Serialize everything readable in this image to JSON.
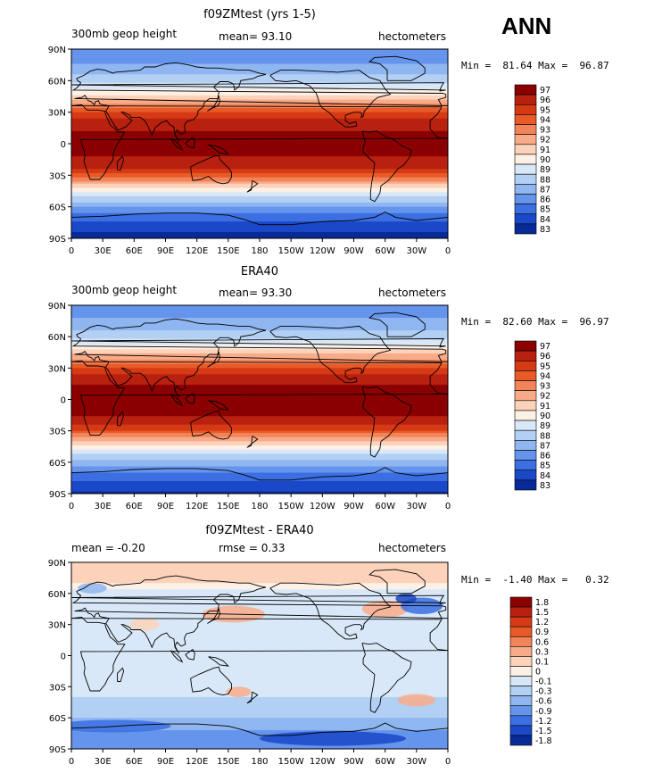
{
  "season_label": "ANN",
  "chart_data": [
    {
      "type": "heatmap",
      "title": "f09ZMtest (yrs 1-5)",
      "left_label": "300mb geop height",
      "center_label": "mean=   93.10",
      "right_label": "hectometers",
      "minmax_label": "Min =  81.64 Max =  96.87",
      "min": 81.64,
      "max": 96.87,
      "mean": 93.1,
      "units": "hectometers",
      "colorbar_labels": [
        "97",
        "96",
        "95",
        "94",
        "93",
        "92",
        "91",
        "90",
        "89",
        "88",
        "87",
        "86",
        "85",
        "84",
        "83"
      ],
      "colorbar_colors": [
        "#8b0000",
        "#b82010",
        "#d63a14",
        "#e85a28",
        "#f2845a",
        "#f8ab89",
        "#fcd2bb",
        "#fdf1e6",
        "#d9e8f8",
        "#b2cff4",
        "#8fb6f0",
        "#6494ec",
        "#3b6fe2",
        "#1a48c8",
        "#082a96"
      ],
      "zonal_mean_lat": [
        -90,
        -80,
        -70,
        -60,
        -50,
        -40,
        -30,
        -20,
        -10,
        0,
        10,
        20,
        30,
        40,
        50,
        60,
        70,
        80,
        90
      ],
      "zonal_mean_values": [
        83.0,
        83.8,
        85.0,
        86.6,
        88.5,
        91.0,
        94.2,
        96.2,
        96.6,
        96.7,
        96.6,
        96.1,
        94.5,
        92.0,
        89.8,
        88.2,
        87.0,
        86.2,
        85.8
      ]
    },
    {
      "type": "heatmap",
      "title": "ERA40",
      "left_label": "300mb geop height",
      "center_label": "mean=   93.30",
      "right_label": "hectometers",
      "minmax_label": "Min =  82.60 Max =  96.97",
      "min": 82.6,
      "max": 96.97,
      "mean": 93.3,
      "units": "hectometers",
      "colorbar_labels": [
        "97",
        "96",
        "95",
        "94",
        "93",
        "92",
        "91",
        "90",
        "89",
        "88",
        "87",
        "86",
        "85",
        "84",
        "83"
      ],
      "colorbar_colors": [
        "#8b0000",
        "#b82010",
        "#d63a14",
        "#e85a28",
        "#f2845a",
        "#f8ab89",
        "#fcd2bb",
        "#fdf1e6",
        "#d9e8f8",
        "#b2cff4",
        "#8fb6f0",
        "#6494ec",
        "#3b6fe2",
        "#1a48c8",
        "#082a96"
      ],
      "zonal_mean_lat": [
        -90,
        -80,
        -70,
        -60,
        -50,
        -40,
        -30,
        -20,
        -10,
        0,
        10,
        20,
        30,
        40,
        50,
        60,
        70,
        80,
        90
      ],
      "zonal_mean_values": [
        83.4,
        84.2,
        85.4,
        87.0,
        88.8,
        91.3,
        94.4,
        96.3,
        96.7,
        96.8,
        96.7,
        96.2,
        94.7,
        92.2,
        89.9,
        88.3,
        87.1,
        86.4,
        86.0
      ]
    },
    {
      "type": "heatmap",
      "title": "f09ZMtest - ERA40",
      "left_label": "mean =  -0.20",
      "center_label": "rmse =    0.33",
      "right_label": "hectometers",
      "minmax_label": "Min =  -1.40 Max =   0.32",
      "min": -1.4,
      "max": 0.32,
      "mean": -0.2,
      "rmse": 0.33,
      "units": "hectometers",
      "colorbar_labels": [
        "1.8",
        "1.5",
        "1.2",
        "0.9",
        "0.6",
        "0.3",
        "0.1",
        "0",
        "-0.1",
        "-0.3",
        "-0.6",
        "-0.9",
        "-1.2",
        "-1.5",
        "-1.8"
      ],
      "colorbar_colors": [
        "#8b0000",
        "#b82010",
        "#d63a14",
        "#e85a28",
        "#f2845a",
        "#f8ab89",
        "#fcd2bb",
        "#fdf1e6",
        "#d9e8f8",
        "#b2cff4",
        "#8fb6f0",
        "#6494ec",
        "#3b6fe2",
        "#1a48c8",
        "#082a96"
      ],
      "zonal_mean_lat": [
        -90,
        -80,
        -70,
        -60,
        -50,
        -40,
        -30,
        -20,
        -10,
        0,
        10,
        20,
        30,
        40,
        50,
        60,
        70,
        80,
        90
      ],
      "zonal_mean_values": [
        -0.9,
        -1.0,
        -0.7,
        -0.45,
        -0.3,
        -0.2,
        -0.15,
        -0.1,
        -0.15,
        -0.15,
        -0.15,
        -0.1,
        -0.1,
        -0.15,
        -0.2,
        -0.15,
        0.05,
        0.1,
        0.15
      ]
    }
  ],
  "x_tick_labels": [
    "0",
    "30E",
    "60E",
    "90E",
    "120E",
    "150E",
    "180",
    "150W",
    "120W",
    "90W",
    "60W",
    "30W",
    "0"
  ],
  "y_tick_labels": [
    "90N",
    "60N",
    "30N",
    "0",
    "30S",
    "60S",
    "90S"
  ]
}
